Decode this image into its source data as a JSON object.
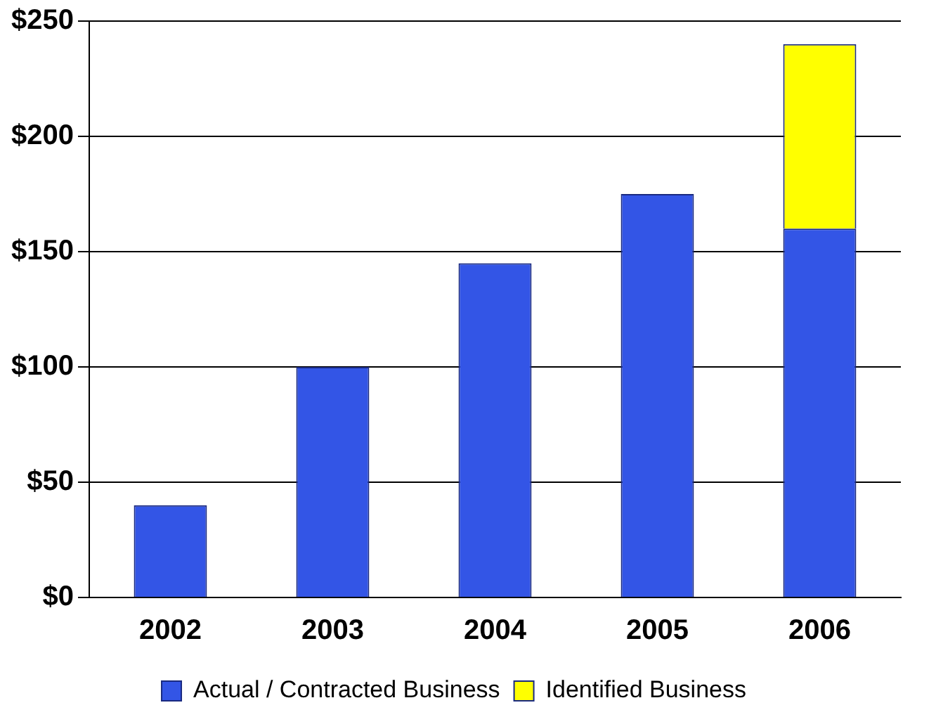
{
  "chart_data": {
    "type": "bar",
    "stacked": true,
    "categories": [
      "2002",
      "2003",
      "2004",
      "2005",
      "2006"
    ],
    "series": [
      {
        "name": "Actual / Contracted Business",
        "color": "#3355e6",
        "values": [
          40,
          100,
          145,
          175,
          160
        ]
      },
      {
        "name": "Identified Business",
        "color": "#ffff00",
        "values": [
          null,
          null,
          null,
          null,
          80
        ]
      }
    ],
    "ylim": [
      0,
      250
    ],
    "yticks": [
      {
        "value": 0,
        "label": "$0"
      },
      {
        "value": 50,
        "label": "$50"
      },
      {
        "value": 100,
        "label": "$100"
      },
      {
        "value": 150,
        "label": "$150"
      },
      {
        "value": 200,
        "label": "$200"
      },
      {
        "value": 250,
        "label": "$250"
      }
    ],
    "grid": "y",
    "legend": "bottom"
  }
}
